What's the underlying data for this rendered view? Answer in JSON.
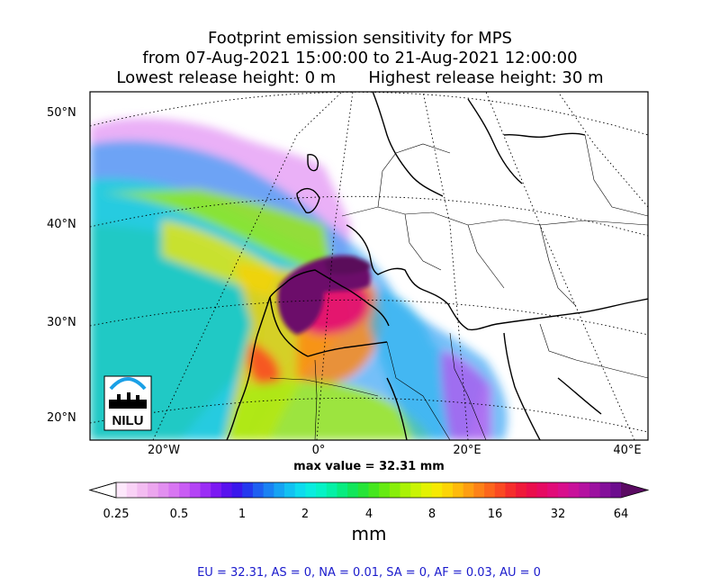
{
  "title": {
    "line1": "Footprint emission sensitivity for MPS",
    "line2": "from 07-Aug-2021 15:00:00 to 21-Aug-2021 12:00:00",
    "line3_left": "Lowest release height: 0 m",
    "line3_right": "Highest release height: 30 m"
  },
  "lat_labels": [
    "50°N",
    "40°N",
    "30°N",
    "20°N"
  ],
  "lon_labels": [
    "20°W",
    "0°",
    "20°E",
    "40°E"
  ],
  "max_value_text": "max value = 32.31 mm",
  "colorbar": {
    "tick_labels": [
      "0.25",
      "0.5",
      "1",
      "2",
      "4",
      "8",
      "16",
      "32",
      "64"
    ],
    "unit": "mm",
    "colors": [
      "#fde8fb",
      "#f9d2f6",
      "#f3bcf1",
      "#eca6ee",
      "#e28ff0",
      "#d876f2",
      "#c95df4",
      "#b444f5",
      "#9b2df5",
      "#7c19f2",
      "#5812ee",
      "#3a17ec",
      "#2438ee",
      "#1e5ff1",
      "#1a82f3",
      "#16a3f3",
      "#12c1f2",
      "#0edbee",
      "#0aecdf",
      "#06f2c6",
      "#05f0a6",
      "#08ec80",
      "#12e65b",
      "#26e438",
      "#45e61e",
      "#66ea12",
      "#88ee0a",
      "#aaf206",
      "#c9f404",
      "#e3f202",
      "#f6e902",
      "#fcd406",
      "#feba0c",
      "#fe9e12",
      "#fd8218",
      "#fc661c",
      "#fa4a22",
      "#f52e2c",
      "#ef1a3a",
      "#ea0e4c",
      "#e60a62",
      "#e10b78",
      "#d80e8c",
      "#c8119a",
      "#b412a0",
      "#9c12a0",
      "#84109a",
      "#6c0d8e"
    ],
    "extend_color": "#5a0a62"
  },
  "logo_text": "NILU",
  "footer": "EU = 32.31,  AS = 0,  NA = 0.01,  SA = 0,  AF = 0.03,  AU = 0"
}
